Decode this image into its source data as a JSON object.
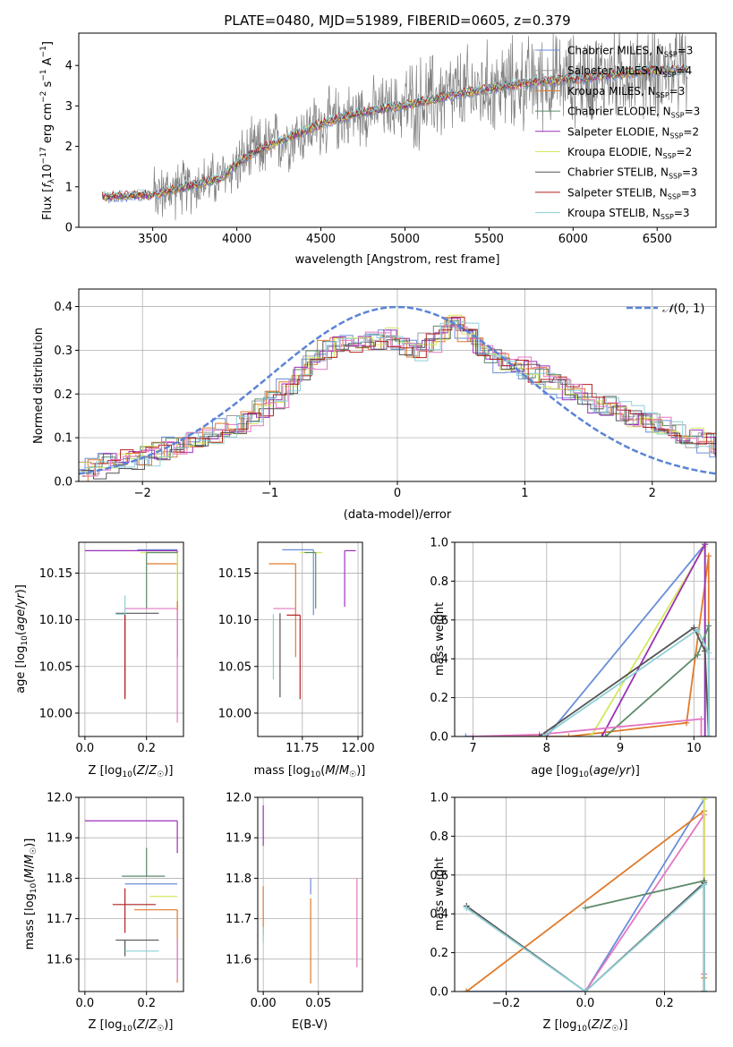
{
  "figure": {
    "title": "PLATE=0480, MJD=51989, FIBERID=0605, z=0.379"
  },
  "chart_data": [
    {
      "type": "line",
      "id": "spectrum",
      "xlabel": "wavelength [Angstrom, rest frame]",
      "ylabel": "Flux [f_λ 10^-17 erg cm^-2 s^-1 A^-1]",
      "xlim": [
        3060,
        6850
      ],
      "ylim": [
        0,
        4.8
      ],
      "xticks": [
        3500,
        4000,
        4500,
        5000,
        5500,
        6000,
        6500
      ],
      "yticks": [
        0,
        1,
        2,
        3,
        4
      ],
      "grid": false,
      "legend_position": "top-right",
      "data_range": [
        3200,
        6680
      ],
      "continuum": {
        "x": [
          3200,
          3500,
          3700,
          3900,
          4000,
          4100,
          4300,
          4500,
          4700,
          4900,
          5000,
          5200,
          5400,
          5600,
          5800,
          6000,
          6200,
          6400,
          6680
        ],
        "y": [
          0.75,
          0.8,
          1.0,
          1.2,
          1.55,
          1.85,
          2.2,
          2.55,
          2.8,
          2.95,
          3.0,
          3.2,
          3.35,
          3.5,
          3.6,
          3.65,
          3.75,
          3.85,
          3.9
        ]
      },
      "series": [
        {
          "name": "Chabrier MILES, N_SSP=3",
          "color": "#6a8ed8"
        },
        {
          "name": "Salpeter MILES, N_SSP=4",
          "color": "#a0a0a0"
        },
        {
          "name": "Kroupa MILES, N_SSP=3",
          "color": "#e07a2a"
        },
        {
          "name": "Chabrier ELODIE, N_SSP=3",
          "color": "#5d8a6a"
        },
        {
          "name": "Salpeter ELODIE, N_SSP=2",
          "color": "#9b30b8"
        },
        {
          "name": "Kroupa ELODIE, N_SSP=2",
          "color": "#d4e85c"
        },
        {
          "name": "Chabrier STELIB, N_SSP=3",
          "color": "#555555"
        },
        {
          "name": "Salpeter STELIB, N_SSP=3",
          "color": "#b22222"
        },
        {
          "name": "Kroupa STELIB, N_SSP=3",
          "color": "#8ecfd6"
        }
      ],
      "data_color": "#808080"
    },
    {
      "type": "histogram",
      "id": "residuals",
      "xlabel": "(data-model)/error",
      "ylabel": "Normed distribution",
      "xlim": [
        -2.5,
        2.5
      ],
      "ylim": [
        0,
        0.44
      ],
      "xticks": [
        -2,
        -1,
        0,
        1,
        2
      ],
      "yticks": [
        0.0,
        0.1,
        0.2,
        0.3,
        0.4
      ],
      "grid": true,
      "legend_position": "top-right",
      "reference": {
        "name": "N(0,1)",
        "mean": 0,
        "sigma": 1,
        "color": "#5b84d6"
      },
      "bin_width": 0.1,
      "base_shape": [
        0.02,
        0.03,
        0.04,
        0.05,
        0.05,
        0.06,
        0.07,
        0.08,
        0.09,
        0.1,
        0.11,
        0.12,
        0.13,
        0.15,
        0.17,
        0.19,
        0.22,
        0.25,
        0.28,
        0.3,
        0.31,
        0.32,
        0.32,
        0.32,
        0.33,
        0.31,
        0.3,
        0.32,
        0.34,
        0.36,
        0.34,
        0.31,
        0.28,
        0.27,
        0.26,
        0.25,
        0.24,
        0.22,
        0.21,
        0.2,
        0.18,
        0.17,
        0.16,
        0.15,
        0.14,
        0.13,
        0.12,
        0.11,
        0.1,
        0.09,
        0.08
      ]
    },
    {
      "type": "scatter",
      "id": "age-vs-Z",
      "xlabel": "Z [log10(Z/Z☉)]",
      "ylabel": "age  [log10(age/yr)]",
      "xlim": [
        -0.02,
        0.32
      ],
      "ylim": [
        9.975,
        10.183
      ],
      "xticks": [
        0.0,
        0.2
      ],
      "yticks": [
        10.0,
        10.05,
        10.1,
        10.15
      ],
      "grid": true,
      "points": [
        {
          "color": "#6a8ed8",
          "x": 0.3,
          "y": 10.175,
          "xerr": [
            0.13,
            0.0
          ],
          "yerr": [
            0.0,
            0.0
          ]
        },
        {
          "color": "#9b30b8",
          "x": 0.3,
          "y": 10.174,
          "xerr": [
            0.3,
            0.0
          ],
          "yerr": [
            0.06,
            0.0
          ]
        },
        {
          "color": "#e07a2a",
          "x": 0.3,
          "y": 10.16,
          "xerr": [
            0.1,
            0.0
          ],
          "yerr": [
            0.1,
            0.0
          ]
        },
        {
          "color": "#d4e85c",
          "x": 0.3,
          "y": 10.172,
          "xerr": [
            0.12,
            0.0
          ],
          "yerr": [
            0.11,
            0.0
          ]
        },
        {
          "color": "#5d8a6a",
          "x": 0.2,
          "y": 10.172,
          "xerr": [
            0.0,
            0.1
          ],
          "yerr": [
            0.06,
            0.0
          ]
        },
        {
          "color": "#e377c2",
          "x": 0.13,
          "y": 10.112,
          "xerr": [
            0.0,
            0.17
          ],
          "yerr": [
            0.0,
            0.0
          ]
        },
        {
          "color": "#555555",
          "x": 0.13,
          "y": 10.107,
          "xerr": [
            0.03,
            0.11
          ],
          "yerr": [
            0.09,
            0.0
          ]
        },
        {
          "color": "#b22222",
          "x": 0.13,
          "y": 10.105,
          "xerr": [
            0.0,
            0.0
          ],
          "yerr": [
            0.09,
            0.0
          ]
        },
        {
          "color": "#8ecfd6",
          "x": 0.13,
          "y": 10.106,
          "xerr": [
            0.03,
            0.0
          ],
          "yerr": [
            0.0,
            0.02
          ]
        },
        {
          "color": "#e07a2a",
          "x": 0.3,
          "y": 10.12,
          "xerr": [
            0.0,
            0.0
          ],
          "yerr": [
            0.06,
            0.0
          ]
        },
        {
          "color": "#e377c2",
          "x": 0.3,
          "y": 10.11,
          "xerr": [
            0.0,
            0.0
          ],
          "yerr": [
            0.12,
            0.0
          ]
        }
      ]
    },
    {
      "type": "scatter",
      "id": "age-vs-mass",
      "xlabel": "mass [log10(M/M☉)]",
      "ylabel": "",
      "xlim": [
        11.55,
        12.02
      ],
      "ylim": [
        9.975,
        10.183
      ],
      "xticks": [
        11.75,
        12.0
      ],
      "yticks": [
        10.0,
        10.05,
        10.1,
        10.15
      ],
      "grid": true,
      "points": [
        {
          "color": "#6a8ed8",
          "x": 11.8,
          "y": 10.175,
          "xerr": [
            0.14,
            0.0
          ],
          "yerr": [
            0.07,
            0.0
          ]
        },
        {
          "color": "#9b30b8",
          "x": 11.94,
          "y": 10.174,
          "xerr": [
            0.0,
            0.05
          ],
          "yerr": [
            0.06,
            0.0
          ]
        },
        {
          "color": "#e07a2a",
          "x": 11.72,
          "y": 10.16,
          "xerr": [
            0.12,
            0.0
          ],
          "yerr": [
            0.1,
            0.0
          ]
        },
        {
          "color": "#d4e85c",
          "x": 11.76,
          "y": 10.172,
          "xerr": [
            0.02,
            0.08
          ],
          "yerr": [
            0.0,
            0.0
          ]
        },
        {
          "color": "#5d8a6a",
          "x": 11.81,
          "y": 10.172,
          "xerr": [
            0.05,
            0.0
          ],
          "yerr": [
            0.06,
            0.0
          ]
        },
        {
          "color": "#e377c2",
          "x": 11.72,
          "y": 10.112,
          "xerr": [
            0.1,
            0.0
          ],
          "yerr": [
            0.0,
            0.0
          ]
        },
        {
          "color": "#555555",
          "x": 11.65,
          "y": 10.107,
          "xerr": [
            0.0,
            0.0
          ],
          "yerr": [
            0.09,
            0.0
          ]
        },
        {
          "color": "#b22222",
          "x": 11.74,
          "y": 10.105,
          "xerr": [
            0.06,
            0.0
          ],
          "yerr": [
            0.09,
            0.0
          ]
        },
        {
          "color": "#8ecfd6",
          "x": 11.62,
          "y": 10.106,
          "xerr": [
            0.0,
            0.0
          ],
          "yerr": [
            0.07,
            0.0
          ]
        },
        {
          "color": "#555555",
          "x": 11.68,
          "y": 10.106,
          "xerr": [
            0.0,
            0.0
          ],
          "yerr": [
            0.0,
            0.0
          ]
        }
      ]
    },
    {
      "type": "line",
      "id": "massweight-vs-age",
      "xlabel": "age  [log10(age/yr)]",
      "ylabel": "mass weight",
      "xlim": [
        6.75,
        10.3
      ],
      "ylim": [
        0,
        1.0
      ],
      "xticks": [
        7,
        8,
        9,
        10
      ],
      "yticks": [
        0.0,
        0.2,
        0.4,
        0.6,
        0.8,
        1.0
      ],
      "grid": true,
      "series": [
        {
          "color": "#6a8ed8",
          "x": [
            6.9,
            8.0,
            10.15,
            10.15
          ],
          "y": [
            0.0,
            0.0,
            0.99,
            0.0
          ]
        },
        {
          "color": "#e07a2a",
          "x": [
            7.0,
            8.3,
            9.9,
            10.2,
            10.2
          ],
          "y": [
            0.0,
            0.0,
            0.07,
            0.93,
            0.0
          ]
        },
        {
          "color": "#d4e85c",
          "x": [
            8.6,
            10.15,
            10.15
          ],
          "y": [
            0.0,
            0.98,
            0.0
          ]
        },
        {
          "color": "#9b30b8",
          "x": [
            8.75,
            10.15,
            10.15
          ],
          "y": [
            0.0,
            0.99,
            0.0
          ]
        },
        {
          "color": "#5d8a6a",
          "x": [
            8.8,
            10.05,
            10.2,
            10.2
          ],
          "y": [
            0.0,
            0.42,
            0.57,
            0.0
          ]
        },
        {
          "color": "#e377c2",
          "x": [
            7.0,
            7.9,
            10.1,
            10.1
          ],
          "y": [
            0.0,
            0.01,
            0.09,
            0.0
          ]
        },
        {
          "color": "#555555",
          "x": [
            7.9,
            10.0,
            10.15,
            10.2
          ],
          "y": [
            0.0,
            0.56,
            0.44,
            0.0
          ]
        },
        {
          "color": "#8ecfd6",
          "x": [
            7.95,
            10.05,
            10.2,
            10.2
          ],
          "y": [
            0.0,
            0.55,
            0.43,
            0.0
          ]
        }
      ]
    },
    {
      "type": "scatter",
      "id": "mass-vs-Z",
      "xlabel": "Z [log10(Z/Z☉)]",
      "ylabel": "mass [log10(M/M☉)]",
      "xlim": [
        -0.02,
        0.32
      ],
      "ylim": [
        11.52,
        12.0
      ],
      "xticks": [
        0.0,
        0.2
      ],
      "yticks": [
        11.6,
        11.7,
        11.8,
        11.9,
        12.0
      ],
      "grid": true,
      "points": [
        {
          "color": "#9b30b8",
          "x": 0.3,
          "y": 11.942,
          "xerr": [
            0.3,
            0.0
          ],
          "yerr": [
            0.08,
            0.0
          ]
        },
        {
          "color": "#5d8a6a",
          "x": 0.2,
          "y": 11.805,
          "xerr": [
            0.08,
            0.06
          ],
          "yerr": [
            0.0,
            0.07
          ]
        },
        {
          "color": "#6a8ed8",
          "x": 0.3,
          "y": 11.786,
          "xerr": [
            0.17,
            0.0
          ],
          "yerr": [
            0.0,
            0.0
          ]
        },
        {
          "color": "#d4e85c",
          "x": 0.3,
          "y": 11.755,
          "xerr": [
            0.09,
            0.0
          ],
          "yerr": [
            0.0,
            0.0
          ]
        },
        {
          "color": "#b22222",
          "x": 0.13,
          "y": 11.735,
          "xerr": [
            0.04,
            0.1
          ],
          "yerr": [
            0.07,
            0.04
          ]
        },
        {
          "color": "#e07a2a",
          "x": 0.3,
          "y": 11.722,
          "xerr": [
            0.14,
            0.0
          ],
          "yerr": [
            0.18,
            0.0
          ]
        },
        {
          "color": "#555555",
          "x": 0.13,
          "y": 11.647,
          "xerr": [
            0.03,
            0.11
          ],
          "yerr": [
            0.04,
            0.0
          ]
        },
        {
          "color": "#8ecfd6",
          "x": 0.13,
          "y": 11.62,
          "xerr": [
            0.0,
            0.11
          ],
          "yerr": [
            0.0,
            0.0
          ]
        },
        {
          "color": "#e377c2",
          "x": 0.3,
          "y": 11.65,
          "xerr": [
            0.0,
            0.0
          ],
          "yerr": [
            0.1,
            0.0
          ]
        }
      ]
    },
    {
      "type": "scatter",
      "id": "mass-vs-ebv",
      "xlabel": "E(B-V)",
      "ylabel": "",
      "xlim": [
        -0.005,
        0.09
      ],
      "ylim": [
        11.52,
        12.0
      ],
      "xticks": [
        0.0,
        0.05
      ],
      "yticks": [
        11.6,
        11.7,
        11.8,
        11.9,
        12.0
      ],
      "grid": true,
      "points": [
        {
          "color": "#9b30b8",
          "x": 0.0,
          "y": 11.88,
          "xerr": [
            0.0,
            0.0
          ],
          "yerr": [
            0.0,
            0.1
          ]
        },
        {
          "color": "#e07a2a",
          "x": 0.0,
          "y": 11.7,
          "xerr": [
            0.0,
            0.0
          ],
          "yerr": [
            0.04,
            0.08
          ]
        },
        {
          "color": "#d4e85c",
          "x": 0.0,
          "y": 11.85,
          "xerr": [
            0.0,
            0.0
          ],
          "yerr": [
            0.0,
            0.0
          ]
        },
        {
          "color": "#8ecfd6",
          "x": 0.0,
          "y": 11.64,
          "xerr": [
            0.0,
            0.0
          ],
          "yerr": [
            0.0,
            0.04
          ]
        },
        {
          "color": "#6a8ed8",
          "x": 0.043,
          "y": 11.76,
          "xerr": [
            0.0,
            0.0
          ],
          "yerr": [
            0.0,
            0.04
          ]
        },
        {
          "color": "#e07a2a",
          "x": 0.043,
          "y": 11.65,
          "xerr": [
            0.0,
            0.0
          ],
          "yerr": [
            0.11,
            0.1
          ]
        },
        {
          "color": "#e377c2",
          "x": 0.085,
          "y": 11.7,
          "xerr": [
            0.0,
            0.0
          ],
          "yerr": [
            0.12,
            0.1
          ]
        }
      ]
    },
    {
      "type": "line",
      "id": "massweight-vs-Z",
      "xlabel": "Z [log10(Z/Z☉)]",
      "ylabel": "mass weight",
      "xlim": [
        -0.33,
        0.33
      ],
      "ylim": [
        0,
        1.0
      ],
      "xticks": [
        -0.2,
        0.0,
        0.2
      ],
      "yticks": [
        0.0,
        0.2,
        0.4,
        0.6,
        0.8,
        1.0
      ],
      "grid": true,
      "series": [
        {
          "color": "#6a8ed8",
          "x": [
            -0.3,
            0.0,
            0.3,
            0.3
          ],
          "y": [
            0.0,
            0.0,
            0.99,
            0.0
          ]
        },
        {
          "color": "#e07a2a",
          "x": [
            -0.3,
            0.3,
            0.3,
            0.3
          ],
          "y": [
            0.0,
            0.93,
            0.07,
            0.0
          ]
        },
        {
          "color": "#e377c2",
          "x": [
            0.0,
            0.3,
            0.3
          ],
          "y": [
            0.0,
            0.91,
            0.09
          ]
        },
        {
          "color": "#d4e85c",
          "x": [
            0.3,
            0.3
          ],
          "y": [
            0.0,
            0.99
          ]
        },
        {
          "color": "#5d8a6a",
          "x": [
            0.0,
            0.3,
            0.3
          ],
          "y": [
            0.43,
            0.57,
            0.0
          ]
        },
        {
          "color": "#555555",
          "x": [
            -0.3,
            0.0,
            0.3,
            0.3
          ],
          "y": [
            0.44,
            0.0,
            0.56,
            0.0
          ]
        },
        {
          "color": "#8ecfd6",
          "x": [
            -0.3,
            0.0,
            0.3,
            0.3
          ],
          "y": [
            0.43,
            0.0,
            0.55,
            0.0
          ]
        }
      ]
    }
  ]
}
